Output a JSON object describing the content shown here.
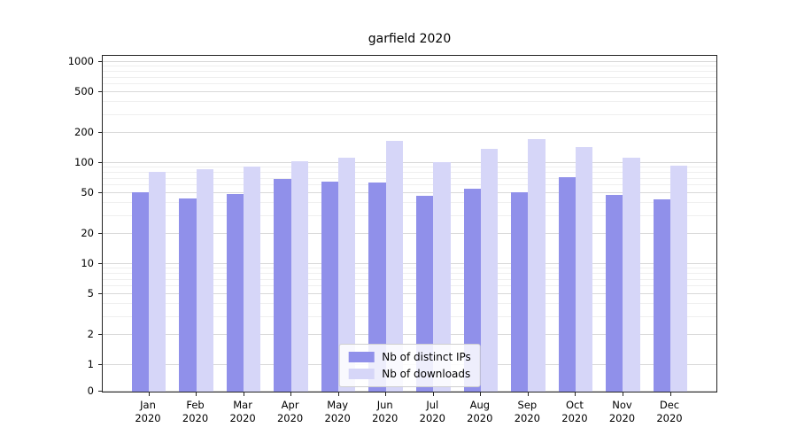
{
  "chart_data": {
    "type": "bar",
    "title": "garfield 2020",
    "categories": [
      "Jan 2020",
      "Feb 2020",
      "Mar 2020",
      "Apr 2020",
      "May 2020",
      "Jun 2020",
      "Jul 2020",
      "Aug 2020",
      "Sep 2020",
      "Oct 2020",
      "Nov 2020",
      "Dec 2020"
    ],
    "series": [
      {
        "name": "Nb of distinct IPs",
        "color": "#9090ea",
        "values": [
          51,
          45,
          49,
          69,
          66,
          64,
          47,
          56,
          51,
          73,
          48,
          44
        ]
      },
      {
        "name": "Nb of downloads",
        "color": "#d6d6f8",
        "values": [
          82,
          86,
          93,
          105,
          112,
          165,
          103,
          138,
          172,
          145,
          113,
          94
        ]
      }
    ],
    "yscale": "symlog",
    "yticks": [
      0,
      1,
      2,
      5,
      10,
      20,
      50,
      100,
      200,
      500,
      1000
    ],
    "ylim": [
      0,
      1200
    ],
    "xlabel": "",
    "ylabel": "",
    "grid": true,
    "legend_position": "lower center"
  }
}
